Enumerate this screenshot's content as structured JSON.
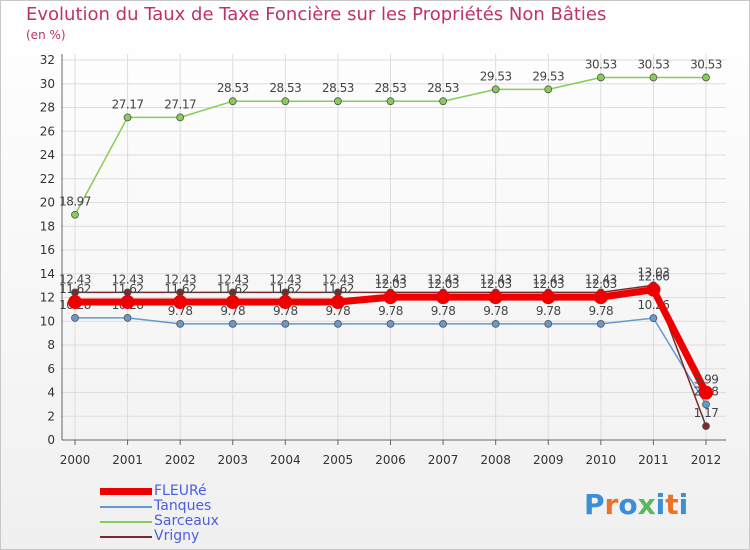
{
  "header": {
    "title": "Evolution du Taux de Taxe Foncière sur les Propriétés Non Bâties",
    "unit": "(en %)"
  },
  "brand": {
    "logo_text": "Proxiti"
  },
  "colors": {
    "title": "#c0306a",
    "legend_text": "#4a5fe0",
    "grid": "#dddddd",
    "logo": [
      "#3b8fd9",
      "#e8732a",
      "#3b8fd9",
      "#5cb85c",
      "#3b8fd9",
      "#e8732a",
      "#3b8fd9"
    ]
  },
  "chart_data": {
    "type": "line",
    "title": "Evolution du Taux de Taxe Foncière sur les Propriétés Non Bâties",
    "ylabel": "(en %)",
    "ylim": [
      0,
      32
    ],
    "yticks": [
      0,
      2,
      4,
      6,
      8,
      10,
      12,
      14,
      16,
      18,
      20,
      22,
      24,
      26,
      28,
      30,
      32
    ],
    "categories": [
      "2000",
      "2001",
      "2002",
      "2003",
      "2004",
      "2005",
      "2006",
      "2007",
      "2008",
      "2009",
      "2010",
      "2011",
      "2012"
    ],
    "legend_position": "bottom-left",
    "series": [
      {
        "name": "Sarceaux",
        "color": "#88cc55",
        "width": 1.5,
        "values": [
          18.97,
          27.17,
          27.17,
          28.53,
          28.53,
          28.53,
          28.53,
          28.53,
          29.53,
          29.53,
          30.53,
          30.53,
          30.53
        ],
        "labels": [
          "18.97",
          "27.17",
          "27.17",
          "28.53",
          "28.53",
          "28.53",
          "28.53",
          "28.53",
          "29.53",
          "29.53",
          "30.53",
          "30.53",
          "30.53"
        ]
      },
      {
        "name": "Tanques",
        "color": "#6699cc",
        "width": 1.5,
        "values": [
          10.28,
          10.28,
          9.78,
          9.78,
          9.78,
          9.78,
          9.78,
          9.78,
          9.78,
          9.78,
          9.78,
          10.26,
          3.0
        ],
        "labels": [
          "10.28",
          "10.28",
          "9.78",
          "9.78",
          "9.78",
          "9.78",
          "9.78",
          "9.78",
          "9.78",
          "9.78",
          "9.78",
          "10.26",
          "2.98"
        ]
      },
      {
        "name": "Vrigny",
        "color": "#7a2a2a",
        "width": 1.5,
        "values": [
          12.43,
          12.43,
          12.43,
          12.43,
          12.43,
          12.43,
          12.43,
          12.43,
          12.43,
          12.43,
          12.43,
          13.03,
          1.17
        ],
        "labels": [
          "12.43",
          "12.43",
          "12.43",
          "12.43",
          "12.43",
          "12.43",
          "12.43",
          "12.43",
          "12.43",
          "12.43",
          "12.43",
          "13.03",
          "1.17"
        ]
      },
      {
        "name": "FLEURé",
        "color": "#ee0000",
        "width": 7,
        "values": [
          11.62,
          11.62,
          11.62,
          11.62,
          11.62,
          11.62,
          12.03,
          12.03,
          12.03,
          12.03,
          12.03,
          12.66,
          3.99
        ],
        "labels": [
          "11.62",
          "11.62",
          "11.62",
          "11.62",
          "11.62",
          "11.62",
          "12.03",
          "12.03",
          "12.03",
          "12.03",
          "12.03",
          "12.66",
          "3.99"
        ]
      }
    ],
    "legend": [
      "FLEURé",
      "Tanques",
      "Sarceaux",
      "Vrigny"
    ]
  }
}
